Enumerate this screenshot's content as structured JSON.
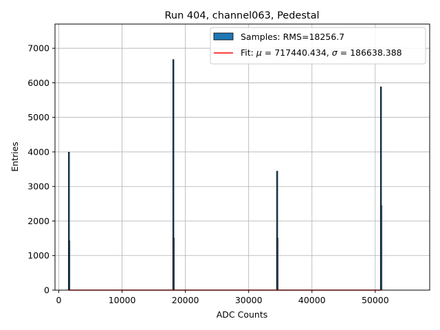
{
  "chart_data": {
    "type": "histogram",
    "title": "Run 404, channel063, Pedestal",
    "xlabel": "ADC Counts",
    "ylabel": "Entries",
    "xlim": [
      -600,
      58600
    ],
    "ylim": [
      0,
      7700
    ],
    "xticks": [
      0,
      10000,
      20000,
      30000,
      40000,
      50000
    ],
    "yticks": [
      0,
      1000,
      2000,
      3000,
      4000,
      5000,
      6000,
      7000
    ],
    "xtick_labels": [
      "0",
      "10000",
      "20000",
      "30000",
      "40000",
      "50000"
    ],
    "ytick_labels": [
      "0",
      "1000",
      "2000",
      "3000",
      "4000",
      "5000",
      "6000",
      "7000"
    ],
    "grid": true,
    "legend_position": "top-right",
    "legend": [
      {
        "label": "Samples: RMS=18256.7",
        "kind": "patch",
        "color": "#1f77b4"
      },
      {
        "label_prefix": "Fit: ",
        "mu_symbol": "μ",
        "mu_text": " = 717440.434, ",
        "sigma_symbol": "σ",
        "sigma_text": " = 186638.388",
        "kind": "line",
        "color": "#ff0000"
      }
    ],
    "peaks": [
      {
        "x": 1600,
        "y": 3990
      },
      {
        "x": 1650,
        "y": 1420
      },
      {
        "x": 18100,
        "y": 6670
      },
      {
        "x": 18150,
        "y": 1500
      },
      {
        "x": 34500,
        "y": 3440
      },
      {
        "x": 34550,
        "y": 1500
      },
      {
        "x": 50900,
        "y": 5880
      },
      {
        "x": 50950,
        "y": 2440
      }
    ],
    "fit_line": {
      "x": [
        1600,
        50900
      ],
      "y": [
        0,
        0
      ]
    },
    "colors": {
      "bars": "#1f77b4",
      "fit": "#ff0000",
      "grid": "#b0b0b0"
    }
  }
}
